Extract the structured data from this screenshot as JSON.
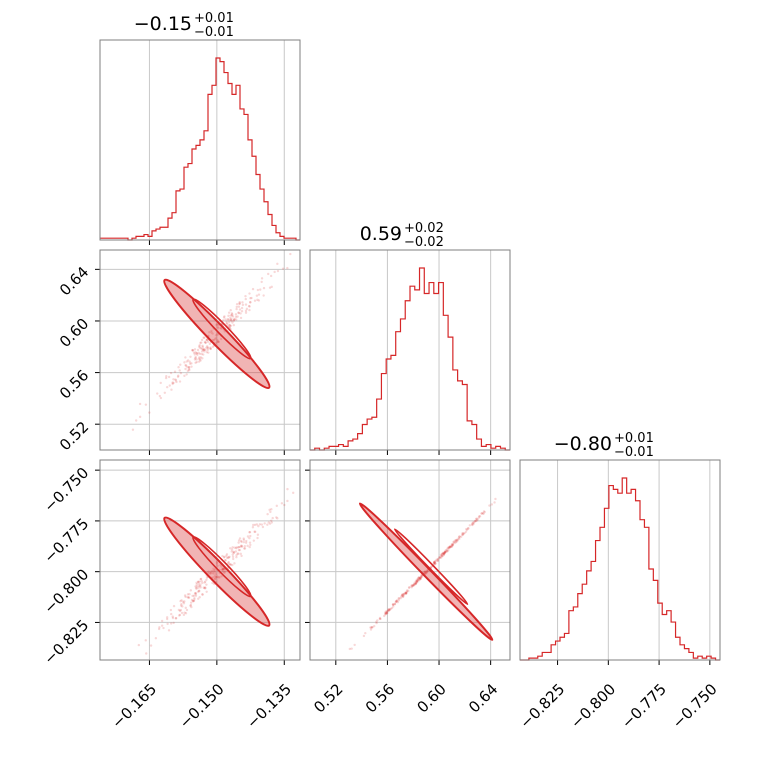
{
  "chart_data": {
    "type": "corner",
    "parameters": [
      {
        "median": -0.15,
        "err_plus": 0.01,
        "err_minus": 0.01,
        "title_main": "−0.15",
        "title_sup": "+0.01",
        "title_sub": "−0.01",
        "range": [
          -0.176,
          -0.1315
        ],
        "ticks": [
          -0.165,
          -0.15,
          -0.135
        ],
        "tick_labels": [
          "−0.165",
          "−0.150",
          "−0.135"
        ],
        "hist_bins": [
          -0.176,
          -0.1315
        ],
        "hist_counts": [
          1,
          1,
          1,
          1,
          1,
          1,
          1,
          0,
          1,
          2,
          2,
          3,
          2,
          5,
          6,
          7,
          7,
          12,
          15,
          27,
          28,
          40,
          42,
          50,
          52,
          55,
          60,
          80,
          85,
          100,
          98,
          92,
          86,
          80,
          85,
          72,
          69,
          55,
          46,
          36,
          28,
          21,
          14,
          8,
          4,
          2,
          1,
          1,
          1,
          0
        ]
      },
      {
        "median": 0.59,
        "err_plus": 0.02,
        "err_minus": 0.02,
        "title_main": "0.59",
        "title_sup": "+0.02",
        "title_sub": "−0.02",
        "range": [
          0.5,
          0.655
        ],
        "ticks": [
          0.52,
          0.56,
          0.6,
          0.64
        ],
        "tick_labels": [
          "0.52",
          "0.56",
          "0.60",
          "0.64"
        ],
        "hist_counts": [
          0,
          1,
          0,
          1,
          2,
          2,
          3,
          2,
          5,
          6,
          9,
          14,
          17,
          18,
          28,
          42,
          50,
          52,
          65,
          72,
          82,
          90,
          88,
          100,
          86,
          92,
          86,
          92,
          74,
          62,
          44,
          38,
          36,
          16,
          14,
          6,
          2,
          3,
          1,
          2,
          1,
          0
        ]
      },
      {
        "median": -0.8,
        "err_plus": 0.01,
        "err_minus": 0.01,
        "title_main": "−0.80",
        "title_sup": "+0.01",
        "title_sub": "−0.01",
        "range": [
          -0.8435,
          -0.745
        ],
        "ticks": [
          -0.825,
          -0.8,
          -0.775,
          -0.75
        ],
        "tick_labels": [
          "−0.825",
          "−0.800",
          "−0.775",
          "−0.750"
        ],
        "hist_counts": [
          0,
          0,
          1,
          1,
          2,
          4,
          4,
          8,
          10,
          12,
          14,
          26,
          28,
          35,
          40,
          47,
          52,
          63,
          70,
          80,
          92,
          90,
          88,
          96,
          88,
          90,
          84,
          74,
          70,
          48,
          42,
          30,
          24,
          26,
          20,
          12,
          8,
          6,
          4,
          1,
          2,
          1,
          2,
          1,
          0
        ]
      }
    ],
    "colors": {
      "series": "#d62728",
      "frame": "#7f7f7f",
      "grid": "#c8c8c8"
    },
    "pair_correlation": "strong positive"
  }
}
